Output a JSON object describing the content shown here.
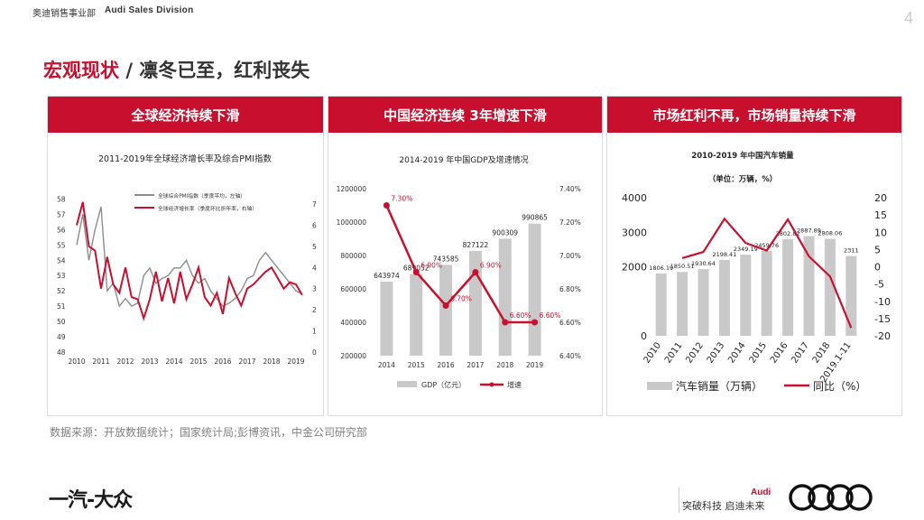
{
  "header": {
    "cn": "奥迪销售事业部",
    "en": "Audi Sales Division",
    "page_no": "4"
  },
  "title": {
    "main": "宏观现状",
    "slash": "/",
    "sub": "凛冬已至，红利丧失"
  },
  "panels": [
    {
      "header": "全球经济持续下滑"
    },
    {
      "header": "中国经济连续 3年增速下滑"
    },
    {
      "header": "市场红利不再，市场销量持续下滑"
    }
  ],
  "source": "数据来源：开放数据统计；国家统计局;彭博资讯，中金公司研究部",
  "footer": {
    "logo_text": "一汽-大众",
    "slogan": "突破科技 启迪未来",
    "audi_word": "Audi"
  },
  "colors": {
    "accent": "#c8102e",
    "gray_bar": "#c9c9c9",
    "gray_line": "#8c8c8c"
  },
  "chart_data": [
    {
      "type": "line",
      "title": "2011-2019年全球经济增长率及综合PMI指数",
      "x_ticks": [
        "2010",
        "2011",
        "2012",
        "2013",
        "2014",
        "2015",
        "2016",
        "2017",
        "2018",
        "2019"
      ],
      "y_left_ticks": [
        "58",
        "57",
        "56",
        "55",
        "54",
        "53",
        "52",
        "51",
        "50",
        "49",
        "48"
      ],
      "y_right_ticks": [
        "7",
        "6",
        "5",
        "4",
        "3",
        "2",
        "1",
        "0"
      ],
      "ylim_left": [
        48,
        58.5
      ],
      "ylim_right": [
        0,
        7.6
      ],
      "legend": [
        "全球综合PMI指数（季度平均，左轴）",
        "全球经济增长率（季度环比折年率，右轴）"
      ],
      "series": [
        {
          "name": "全球综合PMI指数（季度平均，左轴）",
          "axis": "left",
          "color": "#8c8c8c",
          "x": [
            2010,
            2010.25,
            2010.5,
            2010.75,
            2011,
            2011.25,
            2011.5,
            2011.75,
            2012,
            2012.25,
            2012.5,
            2012.75,
            2013,
            2013.25,
            2013.5,
            2013.75,
            2014,
            2014.25,
            2014.5,
            2014.75,
            2015,
            2015.25,
            2015.5,
            2015.75,
            2016,
            2016.25,
            2016.5,
            2016.75,
            2017,
            2017.25,
            2017.5,
            2017.75,
            2018,
            2018.25,
            2018.5,
            2018.75,
            2019,
            2019.25
          ],
          "values": [
            55.0,
            57.0,
            54.0,
            56.0,
            57.5,
            52.0,
            52.5,
            51.0,
            51.5,
            51.0,
            51.2,
            53.0,
            53.5,
            52.5,
            52.8,
            53.0,
            53.5,
            53.5,
            54.0,
            53.0,
            52.5,
            52.8,
            52.0,
            51.5,
            51.0,
            51.2,
            51.5,
            52.0,
            52.8,
            53.0,
            54.0,
            54.5,
            54.0,
            53.5,
            53.0,
            52.5,
            52.0,
            51.8
          ]
        },
        {
          "name": "全球经济增长率（季度环比折年率，右轴）",
          "axis": "right",
          "color": "#c8102e",
          "x": [
            2010,
            2010.25,
            2010.5,
            2010.75,
            2011,
            2011.25,
            2011.5,
            2011.75,
            2012,
            2012.25,
            2012.5,
            2012.75,
            2013,
            2013.25,
            2013.5,
            2013.75,
            2014,
            2014.25,
            2014.5,
            2014.75,
            2015,
            2015.25,
            2015.5,
            2015.75,
            2016,
            2016.25,
            2016.5,
            2016.75,
            2017,
            2017.25,
            2017.5,
            2017.75,
            2018,
            2018.25,
            2018.5,
            2018.75,
            2019,
            2019.25
          ],
          "values": [
            6.0,
            7.1,
            5.0,
            4.8,
            3.0,
            4.5,
            3.2,
            2.8,
            4.0,
            2.6,
            2.5,
            1.6,
            2.5,
            3.8,
            2.4,
            3.5,
            2.3,
            3.8,
            2.5,
            3.2,
            4.0,
            2.6,
            2.2,
            2.8,
            1.8,
            3.5,
            2.8,
            2.2,
            3.0,
            3.2,
            3.5,
            3.8,
            4.0,
            3.5,
            3.0,
            3.3,
            3.2,
            2.7
          ]
        }
      ]
    },
    {
      "type": "bar",
      "title": "2014-2019 年中国GDP及增速情况",
      "categories": [
        "2014",
        "2015",
        "2016",
        "2017",
        "2018",
        "2019"
      ],
      "y_left_ticks": [
        "1200000",
        "1000000",
        "800000",
        "600000",
        "400000",
        "200000"
      ],
      "y_right_ticks": [
        "7.40%",
        "7.20%",
        "7.00%",
        "6.80%",
        "6.60%",
        "6.40%"
      ],
      "ylim_left": [
        200000,
        1200000
      ],
      "ylim_right": [
        6.4,
        7.4
      ],
      "legend": [
        "GDP（亿元）",
        "增速"
      ],
      "series": [
        {
          "name": "GDP（亿元）",
          "type": "bar",
          "color": "#c9c9c9",
          "values": [
            643974,
            689052,
            743585,
            827122,
            900309,
            990865
          ],
          "labels": [
            "643974",
            "689052",
            "743585",
            "827122",
            "900309",
            "990865"
          ]
        },
        {
          "name": "增速",
          "type": "line",
          "axis": "right",
          "color": "#c8102e",
          "values": [
            7.3,
            6.9,
            6.7,
            6.9,
            6.6,
            6.6
          ],
          "labels": [
            "7.30%",
            "6.90%",
            "6.70%",
            "6.90%",
            "6.60%",
            "6.60%"
          ]
        }
      ]
    },
    {
      "type": "bar",
      "title": "2010-2019 年中国汽车销量",
      "subtitle": "（单位：万辆，%）",
      "categories": [
        "2010",
        "2011",
        "2012",
        "2013",
        "2014",
        "2015",
        "2016",
        "2017",
        "2018",
        "2019.1-11"
      ],
      "y_left_ticks": [
        "4000",
        "3000",
        "2000",
        "0"
      ],
      "y_right_ticks": [
        "20",
        "15",
        "10",
        "5",
        "0",
        "-5",
        "-10",
        "-15",
        "-20"
      ],
      "ylim_left": [
        0,
        4000
      ],
      "ylim_right": [
        -20,
        20
      ],
      "legend": [
        "汽车销量（万辆）",
        "同比（%）"
      ],
      "series": [
        {
          "name": "汽车销量（万辆）",
          "type": "bar",
          "color": "#c9c9c9",
          "values": [
            1806.19,
            1850.51,
            1930.64,
            2198.41,
            2349.19,
            2459.76,
            2802.82,
            2887.89,
            2808.06,
            2311
          ],
          "labels": [
            "1806.19",
            "1850.51",
            "1930.64",
            "2198.41",
            "2349.19",
            "2459.76",
            "2802.82",
            "2887.89",
            "2808.06",
            "2311"
          ]
        },
        {
          "name": "同比（%）",
          "type": "line",
          "axis": "right",
          "color": "#c8102e",
          "values": [
            null,
            2.5,
            4.3,
            13.9,
            6.9,
            4.7,
            13.7,
            3.0,
            -2.8,
            -17.7
          ]
        }
      ]
    }
  ]
}
